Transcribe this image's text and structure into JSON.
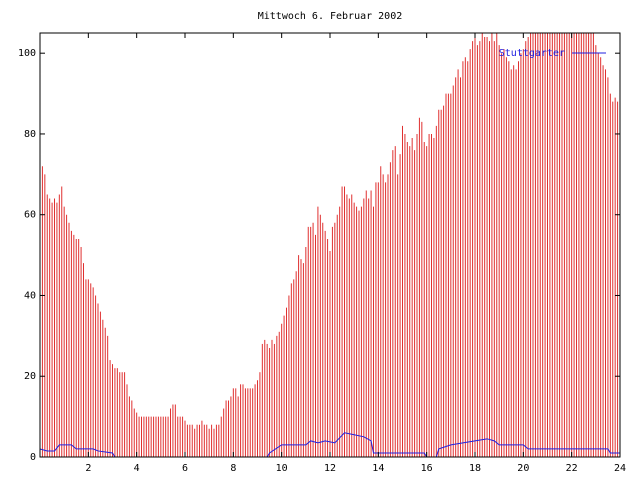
{
  "chart_data": {
    "type": "impulse-line",
    "title": "Mittwoch 6. Februar 2002",
    "xlim": [
      0,
      24
    ],
    "ylim": [
      0,
      105
    ],
    "xticks": [
      2,
      4,
      6,
      8,
      10,
      12,
      14,
      16,
      18,
      20,
      22,
      24
    ],
    "yticks": [
      0,
      20,
      40,
      60,
      80,
      100
    ],
    "legend": "top-right",
    "series": [
      {
        "color": "#e03030",
        "style": "impulses",
        "x": [
          0,
          0.1,
          0.2,
          0.3,
          0.4,
          0.5,
          0.6,
          0.7,
          0.8,
          0.9,
          1,
          1.1,
          1.2,
          1.3,
          1.4,
          1.5,
          1.6,
          1.7,
          1.8,
          1.9,
          2,
          2.1,
          2.2,
          2.3,
          2.4,
          2.5,
          2.6,
          2.7,
          2.8,
          2.9,
          3,
          3.1,
          3.2,
          3.3,
          3.4,
          3.5,
          3.6,
          3.7,
          3.8,
          3.9,
          4,
          4.1,
          4.2,
          4.3,
          4.4,
          4.5,
          4.6,
          4.7,
          4.8,
          4.9,
          5,
          5.1,
          5.2,
          5.3,
          5.4,
          5.5,
          5.6,
          5.7,
          5.8,
          5.9,
          6,
          6.1,
          6.2,
          6.3,
          6.4,
          6.5,
          6.6,
          6.7,
          6.8,
          6.9,
          7,
          7.1,
          7.2,
          7.3,
          7.4,
          7.5,
          7.6,
          7.7,
          7.8,
          7.9,
          8,
          8.1,
          8.2,
          8.3,
          8.4,
          8.5,
          8.6,
          8.7,
          8.8,
          8.9,
          9,
          9.1,
          9.2,
          9.3,
          9.4,
          9.5,
          9.6,
          9.7,
          9.8,
          9.9,
          10,
          10.1,
          10.2,
          10.3,
          10.4,
          10.5,
          10.6,
          10.7,
          10.8,
          10.9,
          11,
          11.1,
          11.2,
          11.3,
          11.4,
          11.5,
          11.6,
          11.7,
          11.8,
          11.9,
          12,
          12.1,
          12.2,
          12.3,
          12.4,
          12.5,
          12.6,
          12.7,
          12.8,
          12.9,
          13,
          13.1,
          13.2,
          13.3,
          13.4,
          13.5,
          13.6,
          13.7,
          13.8,
          13.9,
          14,
          14.1,
          14.2,
          14.3,
          14.4,
          14.5,
          14.6,
          14.7,
          14.8,
          14.9,
          15,
          15.1,
          15.2,
          15.3,
          15.4,
          15.5,
          15.6,
          15.7,
          15.8,
          15.9,
          16,
          16.1,
          16.2,
          16.3,
          16.4,
          16.5,
          16.6,
          16.7,
          16.8,
          16.9,
          17,
          17.1,
          17.2,
          17.3,
          17.4,
          17.5,
          17.6,
          17.7,
          17.8,
          17.9,
          18,
          18.1,
          18.2,
          18.3,
          18.4,
          18.5,
          18.6,
          18.7,
          18.8,
          18.9,
          19,
          19.1,
          19.2,
          19.3,
          19.4,
          19.5,
          19.6,
          19.7,
          19.8,
          19.9,
          20,
          20.1,
          20.2,
          20.3,
          20.4,
          20.5,
          20.6,
          20.7,
          20.8,
          20.9,
          21,
          21.1,
          21.2,
          21.3,
          21.4,
          21.5,
          21.6,
          21.7,
          21.8,
          21.9,
          22,
          22.1,
          22.2,
          22.3,
          22.4,
          22.5,
          22.6,
          22.7,
          22.8,
          22.9,
          23,
          23.1,
          23.2,
          23.3,
          23.4,
          23.5,
          23.6,
          23.7,
          23.8,
          23.9
        ],
        "values": [
          77,
          72,
          70,
          65,
          64,
          63,
          64,
          63,
          65,
          67,
          62,
          60,
          58,
          56,
          55,
          54,
          54,
          52,
          48,
          44,
          44,
          43,
          42,
          40,
          38,
          36,
          34,
          32,
          30,
          24,
          23,
          22,
          22,
          21,
          21,
          21,
          18,
          15,
          14,
          12,
          11,
          10,
          10,
          10,
          10,
          10,
          10,
          10,
          10,
          10,
          10,
          10,
          10,
          10,
          12,
          13,
          13,
          10,
          10,
          10,
          9,
          8,
          8,
          8,
          7,
          8,
          8,
          9,
          8,
          8,
          7,
          8,
          7,
          8,
          8,
          10,
          12,
          14,
          14,
          15,
          17,
          17,
          15,
          18,
          18,
          17,
          17,
          17,
          17,
          18,
          19,
          21,
          28,
          29,
          28,
          27,
          29,
          28,
          30,
          31,
          33,
          35,
          37,
          40,
          43,
          44,
          46,
          50,
          49,
          48,
          52,
          57,
          57,
          58,
          55,
          62,
          60,
          58,
          56,
          54,
          51,
          57,
          58,
          60,
          62,
          67,
          67,
          65,
          64,
          65,
          63,
          62,
          61,
          62,
          64,
          66,
          64,
          66,
          62,
          68,
          68,
          72,
          70,
          68,
          70,
          73,
          76,
          77,
          70,
          75,
          82,
          80,
          78,
          77,
          79,
          76,
          80,
          84,
          83,
          78,
          77,
          80,
          80,
          79,
          82,
          86,
          86,
          87,
          90,
          90,
          90,
          92,
          94,
          96,
          94,
          98,
          99,
          98,
          101,
          103,
          105,
          102,
          103,
          105,
          104,
          104,
          103,
          105,
          103,
          105,
          102,
          100,
          101,
          99,
          98,
          96,
          97,
          96,
          98,
          100,
          101,
          103,
          104,
          105,
          105,
          105,
          105,
          105,
          105,
          105,
          105,
          105,
          105,
          105,
          105,
          105,
          105,
          105,
          105,
          105,
          105,
          105,
          105,
          105,
          105,
          105,
          105,
          105,
          105,
          105,
          102,
          100,
          99,
          97,
          96,
          94,
          90,
          88,
          89,
          88
        ]
      },
      {
        "name": "Stuttgarter",
        "color": "#2020e0",
        "style": "line",
        "x": [
          0,
          0.3,
          0.6,
          0.8,
          1.3,
          1.5,
          2.2,
          2.4,
          3.0,
          3.1,
          9.4,
          9.5,
          10.0,
          11.0,
          11.2,
          11.5,
          11.8,
          12.2,
          12.6,
          13.0,
          13.4,
          13.7,
          13.8,
          15.9,
          16.0,
          16.4,
          16.5,
          17.0,
          17.5,
          18.0,
          18.5,
          18.8,
          19.0,
          20.0,
          20.2,
          23.5,
          23.6,
          24
        ],
        "values": [
          2,
          1.5,
          1.5,
          3,
          3,
          2,
          2,
          1.5,
          1,
          0,
          0,
          1,
          3,
          3,
          4,
          3.5,
          4,
          3.5,
          6,
          5.5,
          5,
          4,
          1,
          1,
          0,
          0,
          2,
          3,
          3.5,
          4,
          4.5,
          4,
          3,
          3,
          2,
          2,
          1,
          1
        ]
      }
    ]
  }
}
